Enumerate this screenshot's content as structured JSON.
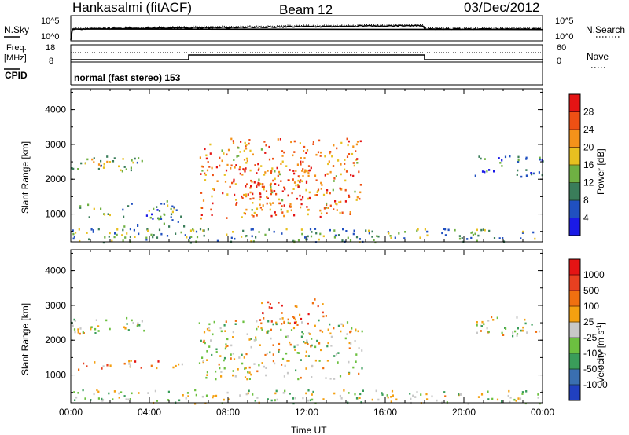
{
  "header": {
    "station": "Hankasalmi (fitACF)",
    "beam": "Beam 12",
    "date": "03/Dec/2012"
  },
  "noise_panel": {
    "left_label": "N.Sky",
    "right_label": "N.Search",
    "y_ticks": [
      "10^5",
      "10^0"
    ]
  },
  "freq_panel": {
    "left_label_top": "Freq.",
    "left_label_unit": "[MHz]",
    "left_ticks": [
      "18",
      "8"
    ],
    "right_label": "Nave",
    "right_ticks": [
      "60",
      "0"
    ],
    "cpid_label": "CPID",
    "cpid_text": "normal (fast stereo) 153"
  },
  "chart_data": [
    {
      "type": "heatmap",
      "name": "power",
      "ylabel": "Slant Range [km]",
      "xlabel": "",
      "ylim": [
        200,
        4600
      ],
      "y_ticks": [
        "4000",
        "3000",
        "2000",
        "1000"
      ],
      "colorbar": {
        "label": "Power [dB]",
        "ticks": [
          "28",
          "24",
          "20",
          "16",
          "12",
          "8",
          "4"
        ],
        "colors": [
          "#1a1ae6",
          "#2050c0",
          "#3a7d5a",
          "#6fb043",
          "#e8c020",
          "#f4921a",
          "#ee5014",
          "#e41414"
        ]
      },
      "regions": [
        {
          "t0": 0.0,
          "t1": 3.7,
          "r0": 2200,
          "r1": 2700,
          "level": 0.45
        },
        {
          "t0": 0.2,
          "t1": 2.0,
          "r0": 900,
          "r1": 1300,
          "level": 0.5
        },
        {
          "t0": 2.5,
          "t1": 5.8,
          "r0": 650,
          "r1": 1400,
          "level": 0.3
        },
        {
          "t0": 6.5,
          "t1": 14.8,
          "r0": 900,
          "r1": 3200,
          "level": 0.7
        },
        {
          "t0": 8.2,
          "t1": 12.2,
          "r0": 1200,
          "r1": 2500,
          "level": 0.9
        },
        {
          "t0": 20.5,
          "t1": 24.0,
          "r0": 2100,
          "r1": 2700,
          "level": 0.2
        },
        {
          "t0": 0.0,
          "t1": 24.0,
          "r0": 200,
          "r1": 600,
          "level": 0.35
        }
      ]
    },
    {
      "type": "heatmap",
      "name": "velocity",
      "ylabel": "Slant Range [km]",
      "xlabel": "Time UT",
      "ylim": [
        200,
        4600
      ],
      "y_ticks": [
        "4000",
        "3000",
        "2000",
        "1000"
      ],
      "x_ticks": [
        "00:00",
        "04:00",
        "08:00",
        "12:00",
        "16:00",
        "20:00",
        "00:00"
      ],
      "colorbar": {
        "label": "Velocity [m s",
        "label_sup": "-1",
        "label_end": "]",
        "ticks": [
          "1000",
          "500",
          "100",
          "25",
          "-25",
          "-100",
          "-500",
          "-1000"
        ],
        "colors": [
          "#2040c0",
          "#3a6fb0",
          "#3a9d5a",
          "#6cc040",
          "#c8c8c8",
          "#f4a010",
          "#f07010",
          "#e84020",
          "#e41414"
        ]
      },
      "regions": [
        {
          "t0": 0.0,
          "t1": 3.7,
          "r0": 2200,
          "r1": 2700,
          "level": 0.5
        },
        {
          "t0": 0.2,
          "t1": 2.0,
          "r0": 1150,
          "r1": 1400,
          "level": 0.72
        },
        {
          "t0": 2.5,
          "t1": 5.8,
          "r0": 1200,
          "r1": 1450,
          "level": 0.72
        },
        {
          "t0": 6.5,
          "t1": 14.8,
          "r0": 900,
          "r1": 2600,
          "level": 0.5
        },
        {
          "t0": 9.5,
          "t1": 13.0,
          "r0": 2500,
          "r1": 3200,
          "level": 0.75
        },
        {
          "t0": 20.5,
          "t1": 24.0,
          "r0": 2100,
          "r1": 2700,
          "level": 0.5
        },
        {
          "t0": 0.0,
          "t1": 24.0,
          "r0": 200,
          "r1": 600,
          "level": 0.45
        }
      ]
    }
  ]
}
